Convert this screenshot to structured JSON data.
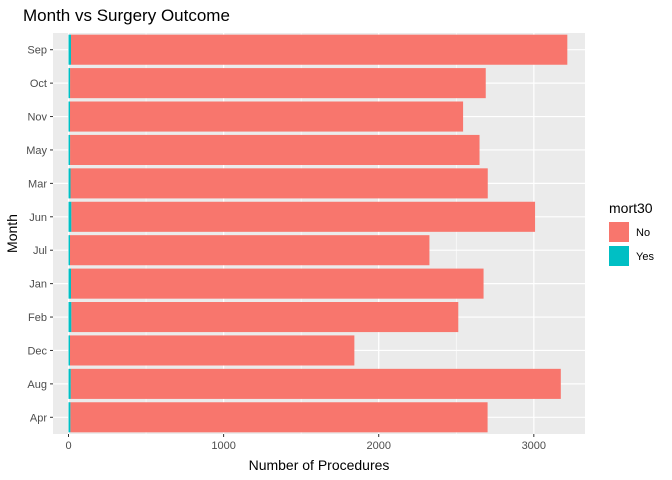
{
  "chart_data": {
    "type": "bar",
    "orientation": "horizontal",
    "stacked": true,
    "title": "Month vs Surgery Outcome",
    "xlabel": "Number of Procedures",
    "ylabel": "Month",
    "categories": [
      "Apr",
      "Aug",
      "Dec",
      "Feb",
      "Jan",
      "Jul",
      "Jun",
      "Mar",
      "May",
      "Nov",
      "Oct",
      "Sep"
    ],
    "series": [
      {
        "name": "No",
        "color": "#F8766D",
        "values": [
          2690,
          3160,
          1840,
          2495,
          2660,
          2320,
          2990,
          2690,
          2640,
          2540,
          2680,
          3200
        ]
      },
      {
        "name": "Yes",
        "color": "#00BFC4",
        "values": [
          12,
          14,
          3,
          18,
          16,
          7,
          18,
          13,
          10,
          4,
          10,
          16
        ]
      }
    ],
    "xlim": [
      -100,
      3330
    ],
    "xticks": [
      0,
      1000,
      2000,
      3000
    ],
    "xtick_labels": [
      "0",
      "1000",
      "2000",
      "3000"
    ],
    "grid": true,
    "legend": {
      "title": "mort30",
      "placement": "right",
      "entries": [
        "No",
        "Yes"
      ]
    }
  }
}
